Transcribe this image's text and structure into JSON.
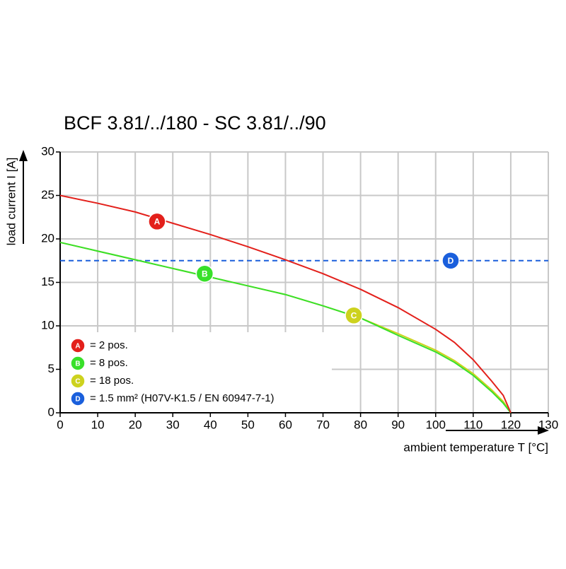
{
  "chart_data": {
    "type": "line",
    "title": "BCF 3.81/../180 - SC 3.81/../90",
    "x_label": "ambient temperature T [°C]",
    "y_label": "load current I [A]",
    "xlim": [
      0,
      130
    ],
    "ylim": [
      0,
      30
    ],
    "xticks": [
      0,
      10,
      20,
      30,
      40,
      50,
      60,
      70,
      80,
      90,
      100,
      110,
      120,
      130
    ],
    "yticks": [
      0,
      5,
      10,
      15,
      20,
      25,
      30
    ],
    "grid": true,
    "series": [
      {
        "name": "= 2 pos.",
        "marker": "A",
        "color": "#e3201b",
        "x": [
          0,
          10,
          20,
          30,
          40,
          50,
          60,
          70,
          80,
          90,
          100,
          105,
          110,
          115,
          118,
          120
        ],
        "values": [
          25,
          24.1,
          23.1,
          21.8,
          20.5,
          19.1,
          17.6,
          16,
          14.2,
          12.1,
          9.6,
          8.1,
          6.1,
          3.6,
          2,
          0
        ],
        "marker_point": [
          25.8,
          22
        ]
      },
      {
        "name": "= 8 pos.",
        "marker": "B",
        "color": "#38e02a",
        "x": [
          0,
          10,
          20,
          30,
          40,
          50,
          60,
          70,
          80,
          90,
          100,
          105,
          110,
          115,
          118,
          120
        ],
        "values": [
          19.6,
          18.6,
          17.6,
          16.6,
          15.6,
          14.6,
          13.6,
          12.3,
          10.9,
          8.9,
          7,
          5.8,
          4.3,
          2.4,
          1.1,
          0
        ],
        "marker_point": [
          38.5,
          16
        ]
      },
      {
        "name": "= 18 pos.",
        "marker": "C",
        "color": "#cdd21e",
        "x": [
          0,
          10,
          20,
          30,
          40,
          50,
          60,
          70,
          80,
          90,
          100,
          105,
          110,
          115,
          118,
          120
        ],
        "values": [
          19.6,
          18.6,
          17.6,
          16.6,
          15.6,
          14.6,
          13.6,
          12.3,
          10.9,
          9.1,
          7.2,
          6,
          4.5,
          2.6,
          1.3,
          0
        ],
        "marker_point": [
          78.2,
          11.2
        ]
      },
      {
        "name": "= 1.5 mm² (H07V-K1.5 / EN 60947-7-1)",
        "marker": "D",
        "color": "#1a5fdc",
        "dashed": true,
        "x": [
          0,
          130
        ],
        "values": [
          17.5,
          17.5
        ],
        "marker_point": [
          104,
          17.5
        ]
      }
    ]
  }
}
